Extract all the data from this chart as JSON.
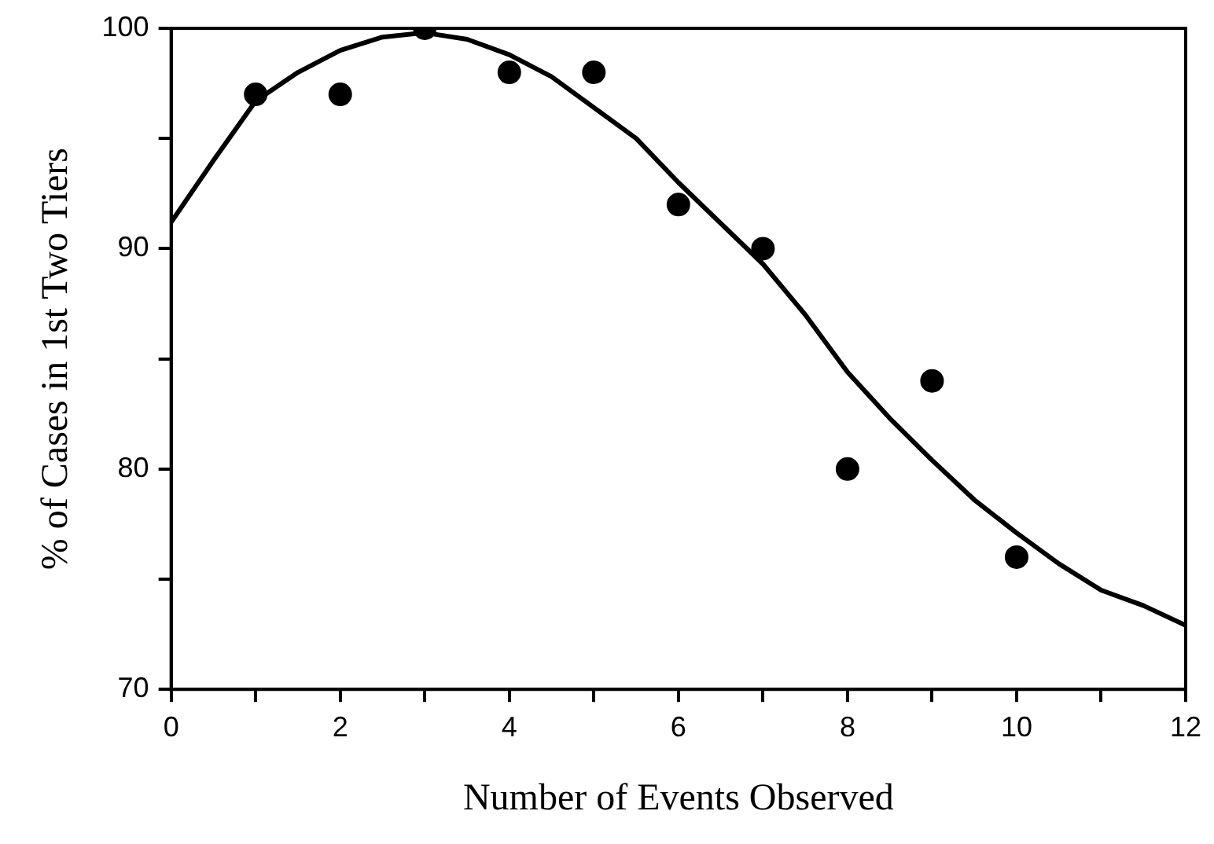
{
  "chart_data": {
    "type": "scatter",
    "xlabel": "Number of Events Observed",
    "ylabel": "% of Cases in 1st Two Tiers",
    "xlim": [
      0,
      12
    ],
    "ylim": [
      70,
      100
    ],
    "xticks": [
      0,
      {
        "value": 1,
        "label": null
      },
      2,
      {
        "value": 3,
        "label": null
      },
      4,
      {
        "value": 5,
        "label": null
      },
      6,
      {
        "value": 7,
        "label": null
      },
      8,
      {
        "value": 9,
        "label": null
      },
      10,
      {
        "value": 11,
        "label": null
      },
      12
    ],
    "yticks": [
      70,
      {
        "value": 75,
        "label": null
      },
      80,
      {
        "value": 85,
        "label": null
      },
      90,
      {
        "value": 95,
        "label": null
      },
      100
    ],
    "grid": false,
    "legend": false,
    "series": [
      {
        "color": "#000000",
        "marker": "circle",
        "x": [
          1,
          2,
          3,
          4,
          5,
          6,
          7,
          8,
          9,
          10
        ],
        "values": [
          97,
          97,
          100,
          98,
          98,
          92,
          90,
          80,
          84,
          76
        ]
      },
      {
        "type": "line",
        "color": "#000000",
        "marker": "none",
        "line_style": "solid",
        "x": [
          0,
          0.5,
          1,
          1.5,
          2,
          2.5,
          3,
          3.5,
          4,
          4.5,
          5,
          5.5,
          6,
          7,
          7.5,
          8,
          8.5,
          9,
          9.5,
          10,
          10.5,
          11,
          11.5,
          12
        ],
        "values": [
          91.2,
          94.0,
          96.7,
          98.0,
          99.0,
          99.6,
          99.8,
          99.5,
          98.8,
          97.8,
          96.4,
          95.0,
          93.0,
          89.3,
          87.0,
          84.4,
          82.3,
          80.4,
          78.6,
          77.1,
          75.7,
          74.5,
          73.8,
          72.9
        ]
      }
    ]
  }
}
